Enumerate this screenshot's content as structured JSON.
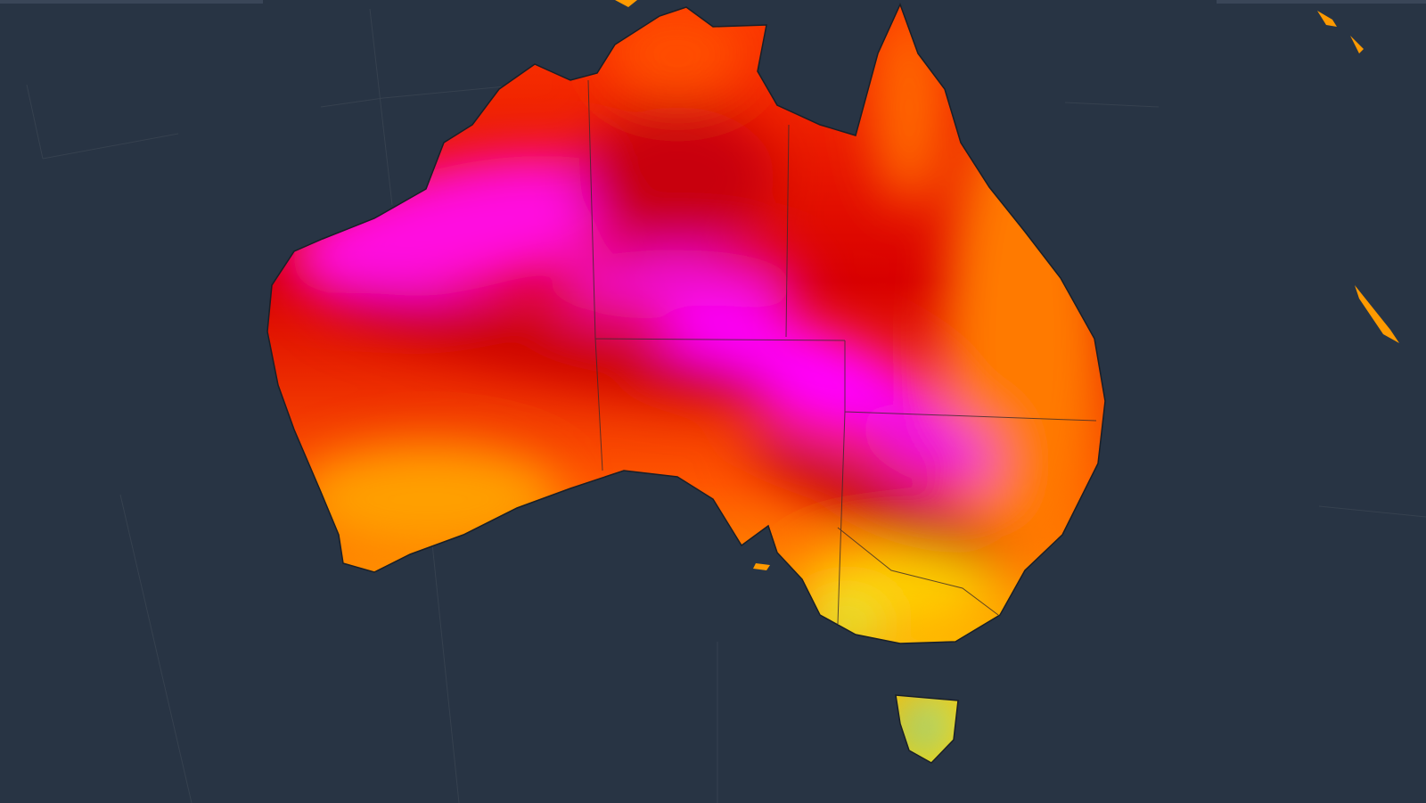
{
  "map": {
    "colors": {
      "background": "#283444",
      "ocean_grid": "#36414f",
      "coastline": "#1a1f27",
      "state_border": "#3a2a2a",
      "hottest": "#ff00ff",
      "very_hot": "#d40000",
      "hot": "#ff3300",
      "warm": "#ff8800",
      "mild": "#ffd000",
      "cool": "#c8f040",
      "coolest": "#30c8c0"
    }
  }
}
